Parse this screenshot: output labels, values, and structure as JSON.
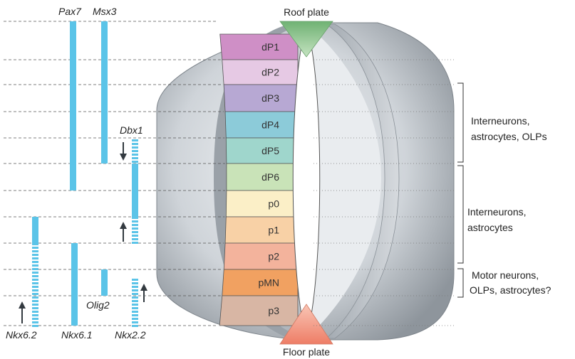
{
  "title_top": "Roof plate",
  "title_bottom": "Floor plate",
  "genes": {
    "pax7": "Pax7",
    "msx3": "Msx3",
    "dbx1": "Dbx1",
    "olig2": "Olig2",
    "nkx62": "Nkx6.2",
    "nkx61": "Nkx6.1",
    "nkx22": "Nkx2.2"
  },
  "domains": [
    "dP1",
    "dP2",
    "dP3",
    "dP4",
    "dP5",
    "dP6",
    "p0",
    "p1",
    "p2",
    "pMN",
    "p3"
  ],
  "domain_colors": [
    "#cf8fc6",
    "#e6c9e4",
    "#b7a8d3",
    "#8ccbd9",
    "#9fd6cc",
    "#c9e3b8",
    "#fbefc7",
    "#f8d1a6",
    "#f3b39c",
    "#f1a161",
    "#d8b6a4"
  ],
  "fates": {
    "group1_line1": "Interneurons,",
    "group1_line2": "astrocytes, OLPs",
    "group2_line1": "Interneurons,",
    "group2_line2": "astrocytes",
    "group3_line1": "Motor neurons,",
    "group3_line2": "OLPs, astrocytes?"
  },
  "colors": {
    "gene_bar": "#5bc4e8",
    "roof_plate": "#8cc78d",
    "floor_plate": "#f2917a",
    "tube": "#c8cdd3"
  }
}
